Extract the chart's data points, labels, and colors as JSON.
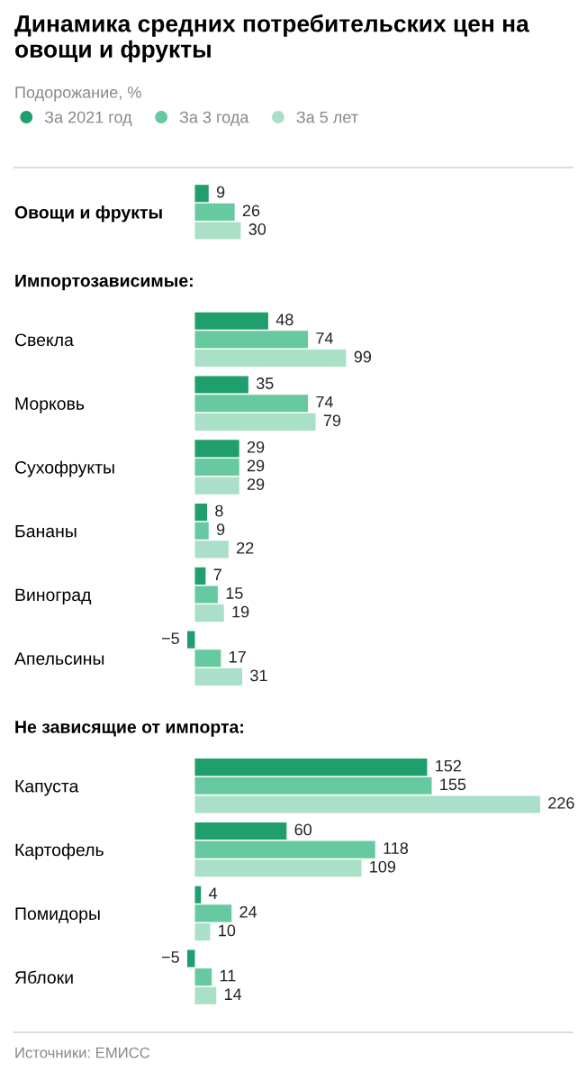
{
  "chart_data": {
    "type": "bar",
    "orientation": "horizontal",
    "title": "Динамика средних потребительских цен на овощи и фрукты",
    "subtitle": "Подорожание, %",
    "categories": [
      "Овощи и фрукты",
      "Свекла",
      "Морковь",
      "Сухофрукты",
      "Бананы",
      "Виноград",
      "Апельсины",
      "Капуста",
      "Картофель",
      "Помидоры",
      "Яблоки"
    ],
    "series": [
      {
        "name": "За 2021 год",
        "color": "#1f9e6e",
        "values": [
          9,
          48,
          35,
          29,
          8,
          7,
          -5,
          152,
          60,
          4,
          -5
        ]
      },
      {
        "name": "За 3 года",
        "color": "#66c9a0",
        "values": [
          26,
          74,
          74,
          29,
          9,
          15,
          17,
          155,
          118,
          24,
          11
        ]
      },
      {
        "name": "За 5 лет",
        "color": "#a9e0c7",
        "values": [
          30,
          99,
          79,
          29,
          22,
          19,
          31,
          226,
          109,
          10,
          14
        ]
      }
    ],
    "data_labels": true,
    "legend": "top left",
    "grid": false,
    "annotations": [
      "Импортозависимые:",
      "Не зависящие от импорта:",
      "Источники: ЕМИСС"
    ]
  }
}
